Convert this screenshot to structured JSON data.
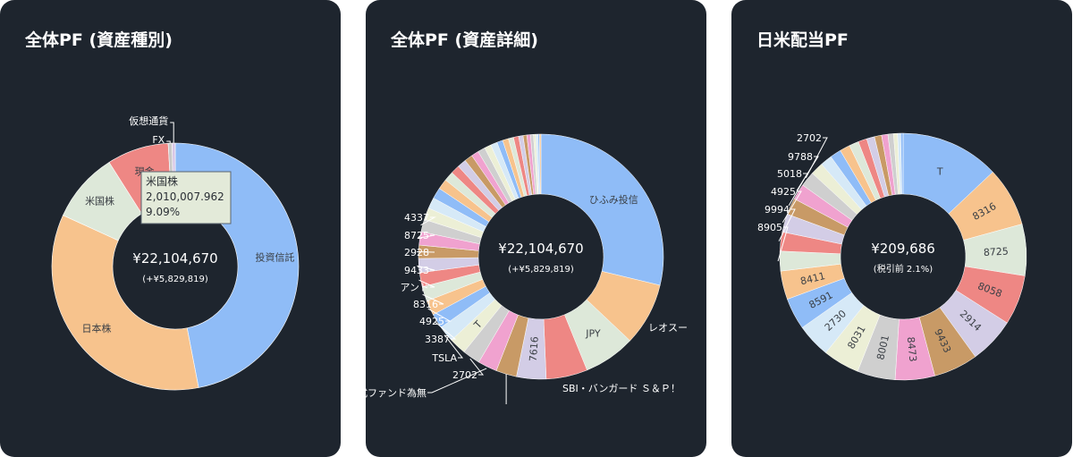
{
  "chart_data": [
    {
      "type": "pie",
      "title": "全体PF (資産種別)",
      "center": {
        "total": "¥22,104,670",
        "sub": "(+¥5,829,819)"
      },
      "slices": [
        {
          "label": "投資信託",
          "value": 46.5,
          "color": "#8fbcf7"
        },
        {
          "label": "日本株",
          "value": 34.5,
          "color": "#f7c38d"
        },
        {
          "label": "米国株",
          "value": 9.09,
          "color": "#dde8d9"
        },
        {
          "label": "現金",
          "value": 8.0,
          "color": "#ee8784"
        },
        {
          "label": "FX",
          "value": 0.5,
          "color": "#c9c9c9"
        },
        {
          "label": "仮想通貨",
          "value": 0.41,
          "color": "#d9c7e6"
        }
      ],
      "tooltip": {
        "name": "米国株",
        "value": "2,010,007.962",
        "percent": "9.09%"
      }
    },
    {
      "type": "pie",
      "title": "全体PF (資産詳細)",
      "center": {
        "total": "¥22,104,670",
        "sub": "(+¥5,829,819)"
      },
      "slices": [
        {
          "label": "ひふみ投信",
          "value": 29.5,
          "color": "#8fbcf7"
        },
        {
          "label": "レオスー",
          "value": 8.5,
          "color": "#f7c38d"
        },
        {
          "label": "JPY",
          "value": 7.0,
          "color": "#dde8d9"
        },
        {
          "label": "SBI・バンガード Ｓ＆Ｐ！",
          "value": 5.6,
          "color": "#ee8784"
        },
        {
          "label": "7616",
          "value": 4.0,
          "color": "#d3cde6"
        },
        {
          "label": "",
          "value": 2.8,
          "color": "#c89a66"
        },
        {
          "label": "株式ファンド為無",
          "value": 2.6,
          "color": "#f0a2cf"
        },
        {
          "label": "2702",
          "value": 2.4,
          "color": "#cfcfcf"
        },
        {
          "label": "T",
          "value": 2.3,
          "color": "#ecefd6"
        },
        {
          "label": "TSLA",
          "value": 2.2,
          "color": "#d6e9f7"
        },
        {
          "label": "3387",
          "value": 2.0,
          "color": "#8fbcf7"
        },
        {
          "label": "4925",
          "value": 2.0,
          "color": "#f7c38d"
        },
        {
          "label": "8316",
          "value": 2.0,
          "color": "#dde8d9"
        },
        {
          "label": "アンド",
          "value": 1.9,
          "color": "#ee8784"
        },
        {
          "label": "9433",
          "value": 1.9,
          "color": "#d3cde6"
        },
        {
          "label": "2928",
          "value": 1.8,
          "color": "#c89a66"
        },
        {
          "label": "8725",
          "value": 1.8,
          "color": "#f0a2cf"
        },
        {
          "label": "4337",
          "value": 1.7,
          "color": "#cfcfcf"
        },
        {
          "label": "",
          "value": 1.6,
          "color": "#ecefd6"
        },
        {
          "label": "",
          "value": 1.5,
          "color": "#d6e9f7"
        },
        {
          "label": "",
          "value": 1.5,
          "color": "#8fbcf7"
        },
        {
          "label": "",
          "value": 1.4,
          "color": "#f7c38d"
        },
        {
          "label": "",
          "value": 1.3,
          "color": "#dde8d9"
        },
        {
          "label": "",
          "value": 1.2,
          "color": "#ee8784"
        },
        {
          "label": "",
          "value": 1.2,
          "color": "#d3cde6"
        },
        {
          "label": "",
          "value": 1.1,
          "color": "#c89a66"
        },
        {
          "label": "",
          "value": 1.0,
          "color": "#f0a2cf"
        },
        {
          "label": "",
          "value": 1.0,
          "color": "#cfcfcf"
        },
        {
          "label": "",
          "value": 0.9,
          "color": "#ecefd6"
        },
        {
          "label": "",
          "value": 0.9,
          "color": "#d6e9f7"
        },
        {
          "label": "",
          "value": 0.8,
          "color": "#8fbcf7"
        },
        {
          "label": "",
          "value": 0.8,
          "color": "#f7c38d"
        },
        {
          "label": "",
          "value": 0.7,
          "color": "#dde8d9"
        },
        {
          "label": "",
          "value": 0.7,
          "color": "#ee8784"
        },
        {
          "label": "",
          "value": 0.6,
          "color": "#d3cde6"
        },
        {
          "label": "",
          "value": 0.5,
          "color": "#c89a66"
        },
        {
          "label": "",
          "value": 0.5,
          "color": "#f0a2cf"
        },
        {
          "label": "",
          "value": 0.4,
          "color": "#cfcfcf"
        },
        {
          "label": "",
          "value": 0.3,
          "color": "#ecefd6"
        },
        {
          "label": "",
          "value": 0.3,
          "color": "#d6e9f7"
        },
        {
          "label": "",
          "value": 0.2,
          "color": "#8fbcf7"
        },
        {
          "label": "",
          "value": 0.2,
          "color": "#f7c38d"
        }
      ]
    },
    {
      "type": "pie",
      "title": "日米配当PF",
      "center": {
        "total": "¥209,686",
        "sub": "(税引前 2.1%)"
      },
      "slices": [
        {
          "label": "T",
          "value": 12.5,
          "color": "#8fbcf7"
        },
        {
          "label": "8316",
          "value": 7.5,
          "color": "#f7c38d"
        },
        {
          "label": "8725",
          "value": 6.5,
          "color": "#dde8d9"
        },
        {
          "label": "8058",
          "value": 6.3,
          "color": "#ee8784"
        },
        {
          "label": "2914",
          "value": 5.8,
          "color": "#d3cde6"
        },
        {
          "label": "9433",
          "value": 5.6,
          "color": "#c89a66"
        },
        {
          "label": "8473",
          "value": 5.0,
          "color": "#f0a2cf"
        },
        {
          "label": "8001",
          "value": 4.8,
          "color": "#cfcfcf"
        },
        {
          "label": "8031",
          "value": 4.6,
          "color": "#ecefd6"
        },
        {
          "label": "2730",
          "value": 4.3,
          "color": "#d6e9f7"
        },
        {
          "label": "8591",
          "value": 4.0,
          "color": "#8fbcf7"
        },
        {
          "label": "8411",
          "value": 3.6,
          "color": "#f7c38d"
        },
        {
          "label": "8905",
          "value": 2.5,
          "color": "#dde8d9"
        },
        {
          "label": "9994",
          "value": 2.4,
          "color": "#ee8784"
        },
        {
          "label": "4925",
          "value": 2.3,
          "color": "#d3cde6"
        },
        {
          "label": "5018",
          "value": 2.1,
          "color": "#c89a66"
        },
        {
          "label": "9788",
          "value": 2.0,
          "color": "#f0a2cf"
        },
        {
          "label": "2702",
          "value": 1.9,
          "color": "#cfcfcf"
        },
        {
          "label": "",
          "value": 1.6,
          "color": "#ecefd6"
        },
        {
          "label": "",
          "value": 1.5,
          "color": "#d6e9f7"
        },
        {
          "label": "",
          "value": 1.4,
          "color": "#8fbcf7"
        },
        {
          "label": "",
          "value": 1.3,
          "color": "#f7c38d"
        },
        {
          "label": "",
          "value": 1.2,
          "color": "#dde8d9"
        },
        {
          "label": "",
          "value": 1.1,
          "color": "#ee8784"
        },
        {
          "label": "",
          "value": 1.0,
          "color": "#d3cde6"
        },
        {
          "label": "",
          "value": 0.9,
          "color": "#c89a66"
        },
        {
          "label": "",
          "value": 0.8,
          "color": "#f0a2cf"
        },
        {
          "label": "",
          "value": 0.7,
          "color": "#cfcfcf"
        },
        {
          "label": "",
          "value": 0.5,
          "color": "#ecefd6"
        },
        {
          "label": "",
          "value": 0.4,
          "color": "#d6e9f7"
        },
        {
          "label": "",
          "value": 0.3,
          "color": "#8fbcf7"
        }
      ]
    }
  ]
}
